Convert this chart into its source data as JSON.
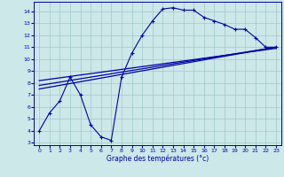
{
  "xlabel": "Graphe des températures (°c)",
  "bg_color": "#cce8e8",
  "line_color": "#0000aa",
  "xlim": [
    -0.5,
    23.5
  ],
  "ylim": [
    2.8,
    14.8
  ],
  "xticks": [
    0,
    1,
    2,
    3,
    4,
    5,
    6,
    7,
    8,
    9,
    10,
    11,
    12,
    13,
    14,
    15,
    16,
    17,
    18,
    19,
    20,
    21,
    22,
    23
  ],
  "yticks": [
    3,
    4,
    5,
    6,
    7,
    8,
    9,
    10,
    11,
    12,
    13,
    14
  ],
  "line1_x": [
    0,
    1,
    2,
    3,
    4,
    5,
    6,
    7,
    8,
    9,
    10,
    11,
    12,
    13,
    14,
    15,
    16,
    17,
    18,
    19,
    20,
    21,
    22,
    23
  ],
  "line1_y": [
    4.0,
    5.5,
    6.5,
    8.5,
    7.0,
    4.5,
    3.5,
    3.2,
    8.5,
    10.5,
    12.0,
    13.2,
    14.2,
    14.3,
    14.1,
    14.1,
    13.5,
    13.2,
    12.9,
    12.5,
    12.5,
    11.8,
    11.0,
    11.0
  ],
  "line2_x": [
    0,
    23
  ],
  "line2_y": [
    7.5,
    11.0
  ],
  "line3_x": [
    0,
    23
  ],
  "line3_y": [
    7.8,
    11.0
  ],
  "line4_x": [
    0,
    23
  ],
  "line4_y": [
    8.2,
    10.9
  ],
  "grid_color": "#a0c8c8"
}
